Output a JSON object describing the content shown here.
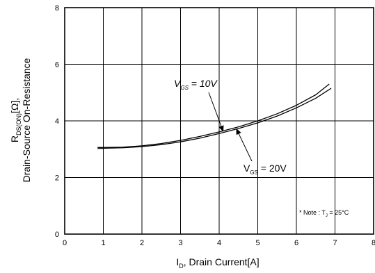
{
  "chart_data": {
    "type": "line",
    "xlabel": {
      "main": "I",
      "sub": "D",
      "rest": ", Drain Current[A]"
    },
    "ylabel": {
      "line1": {
        "main": "R",
        "sub": "DS(ON)",
        "rest": "[Ω],"
      },
      "line2": "Drain-Source On-Resistance"
    },
    "xlim": [
      0,
      8
    ],
    "ylim": [
      0,
      8
    ],
    "x_ticks": [
      "0",
      "1",
      "2",
      "3",
      "4",
      "5",
      "6",
      "7",
      "8"
    ],
    "y_ticks": [
      "0",
      "2",
      "4",
      "6",
      "8"
    ],
    "grid": true,
    "series": [
      {
        "name": "V_GS = 10V",
        "x": [
          0.85,
          1.0,
          1.5,
          2.0,
          2.5,
          3.0,
          3.5,
          4.0,
          4.5,
          5.0,
          5.5,
          6.0,
          6.5,
          6.85
        ],
        "y": [
          3.06,
          3.06,
          3.07,
          3.12,
          3.2,
          3.31,
          3.45,
          3.61,
          3.79,
          4.0,
          4.25,
          4.55,
          4.92,
          5.3
        ]
      },
      {
        "name": "V_GS = 20V",
        "x": [
          0.85,
          1.0,
          1.5,
          2.0,
          2.5,
          3.0,
          3.5,
          4.0,
          4.5,
          5.0,
          5.5,
          6.0,
          6.5,
          6.9
        ],
        "y": [
          3.02,
          3.03,
          3.05,
          3.09,
          3.16,
          3.26,
          3.39,
          3.55,
          3.73,
          3.93,
          4.17,
          4.46,
          4.8,
          5.15
        ]
      }
    ],
    "annotations": {
      "vgs10": {
        "main": "V",
        "sub": "GS",
        "rest": " = 10V"
      },
      "vgs20": {
        "main": "V",
        "sub": "GS",
        "rest": " = 20V"
      },
      "note": {
        "prefix": "* Note : T",
        "sub": "J",
        "rest": " = 25°C"
      }
    }
  }
}
